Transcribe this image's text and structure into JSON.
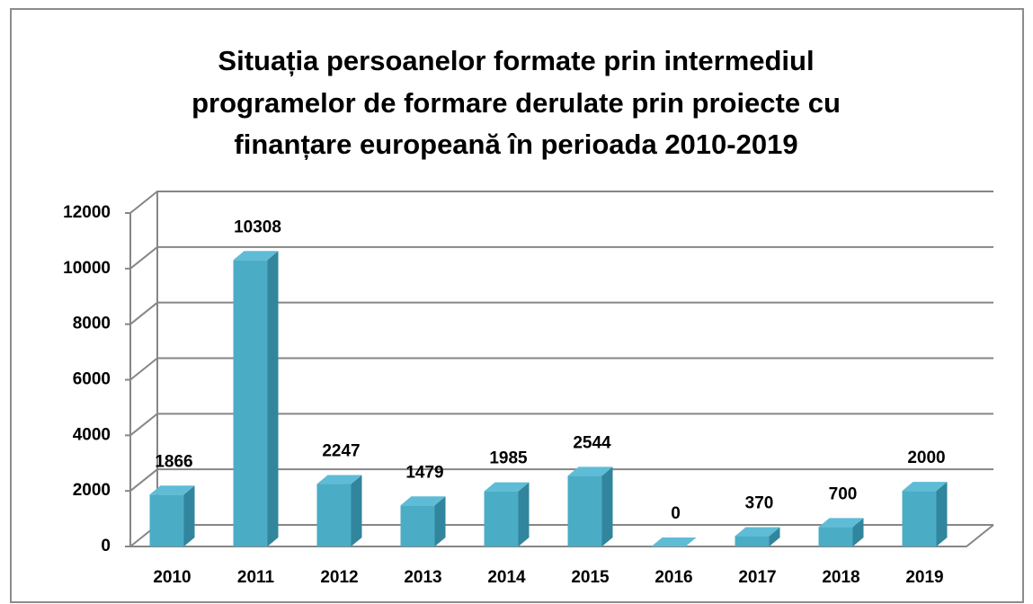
{
  "chart_data": {
    "type": "bar3d",
    "title": [
      "Situația persoanelor formate prin intermediul",
      "programelor de formare derulate prin proiecte cu",
      "finanțare europeană în perioada 2010-2019"
    ],
    "categories": [
      "2010",
      "2011",
      "2012",
      "2013",
      "2014",
      "2015",
      "2016",
      "2017",
      "2018",
      "2019"
    ],
    "values": [
      1866,
      10308,
      2247,
      1479,
      1985,
      2544,
      0,
      370,
      700,
      2000
    ],
    "color": "#4bacc6",
    "ylim": [
      0,
      12000
    ],
    "yticks": [
      0,
      2000,
      4000,
      6000,
      8000,
      10000,
      12000
    ],
    "grid": true
  }
}
